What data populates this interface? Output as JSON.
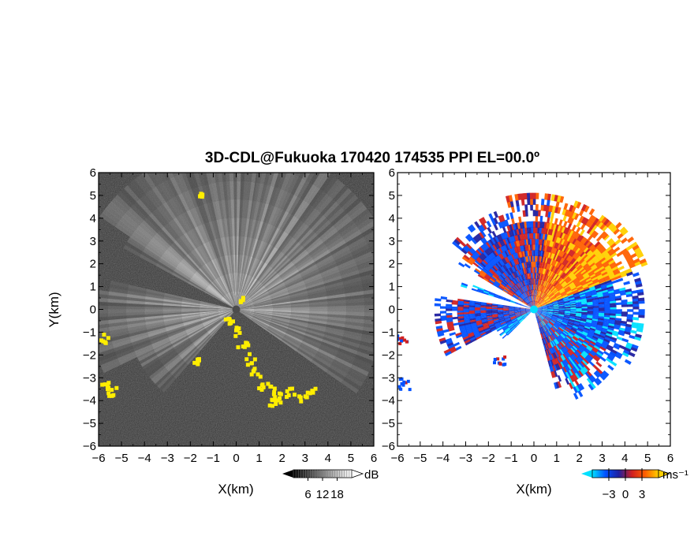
{
  "chart_data": {
    "type": "heatmap",
    "title": "3D-CDL@Fukuoka 170420 174535 PPI EL=00.0º",
    "panels": [
      {
        "name": "intensity",
        "xlabel": "X(km)",
        "ylabel": "Y(km)",
        "xlim": [
          -6,
          6
        ],
        "ylim": [
          -6,
          6
        ],
        "xticks": [
          "−6",
          "−5",
          "−4",
          "−3",
          "−2",
          "−1",
          "0",
          "1",
          "2",
          "3",
          "4",
          "5",
          "6"
        ],
        "yticks": [
          "−6",
          "−5",
          "−4",
          "−3",
          "−2",
          "−1",
          "0",
          "1",
          "2",
          "3",
          "4",
          "5",
          "6"
        ],
        "background_color": "#2a2a2a",
        "colorbar": {
          "unit": "dB",
          "ticks": [
            6,
            12,
            18
          ],
          "range": [
            0,
            24
          ],
          "colors": [
            "#000000",
            "#ffffff"
          ]
        },
        "highlight_color": "#ffee00"
      },
      {
        "name": "velocity",
        "xlabel": "X(km)",
        "xlim": [
          -6,
          6
        ],
        "ylim": [
          -6,
          6
        ],
        "xticks": [
          "−6",
          "−5",
          "−4",
          "−3",
          "−2",
          "−1",
          "0",
          "1",
          "2",
          "3",
          "4",
          "5",
          "6"
        ],
        "yticks": [
          "−6",
          "−5",
          "−4",
          "−3",
          "−2",
          "−1",
          "0",
          "1",
          "2",
          "3",
          "4",
          "5",
          "6"
        ],
        "background_color": "#ffffff",
        "colorbar": {
          "unit": "ms⁻¹",
          "ticks": [
            -3,
            0,
            3
          ],
          "range": [
            -6,
            6
          ],
          "colors": [
            "#00e0ff",
            "#0050ff",
            "#2020a0",
            "#d02020",
            "#ff6000",
            "#ffd000"
          ]
        }
      }
    ]
  }
}
